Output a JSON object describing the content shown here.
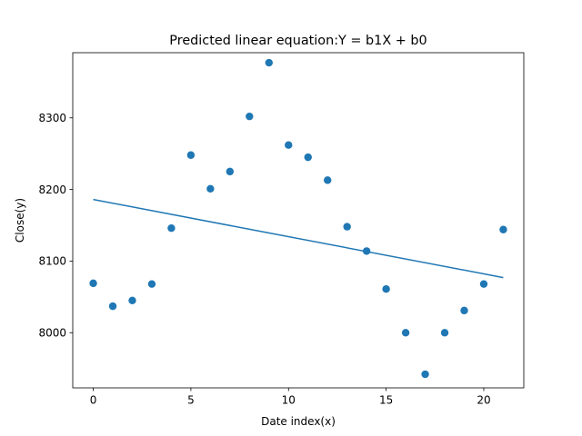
{
  "chart_data": {
    "type": "scatter",
    "title": "Predicted linear equation:Y = b1X + b0",
    "xlabel": "Date index(x)",
    "ylabel": "Close(y)",
    "xlim": [
      -1.05,
      22.05
    ],
    "ylim": [
      7923,
      8391
    ],
    "xticks": [
      0,
      5,
      10,
      15,
      20
    ],
    "yticks": [
      8000,
      8100,
      8200,
      8300
    ],
    "grid": false,
    "legend": "none",
    "colors": {
      "series": "#1f77b4"
    },
    "series": [
      {
        "kind": "scatter",
        "x": [
          0,
          1,
          2,
          3,
          4,
          5,
          6,
          7,
          8,
          9,
          10,
          11,
          12,
          13,
          14,
          15,
          16,
          17,
          18,
          19,
          20,
          21
        ],
        "y": [
          8069,
          8037,
          8045,
          8068,
          8146,
          8248,
          8201,
          8225,
          8302,
          8377,
          8262,
          8245,
          8213,
          8148,
          8114,
          8061,
          8000,
          7942,
          8000,
          8031,
          8068,
          8144
        ]
      },
      {
        "kind": "line",
        "x": [
          0,
          21
        ],
        "y": [
          8186,
          8077
        ]
      }
    ]
  }
}
